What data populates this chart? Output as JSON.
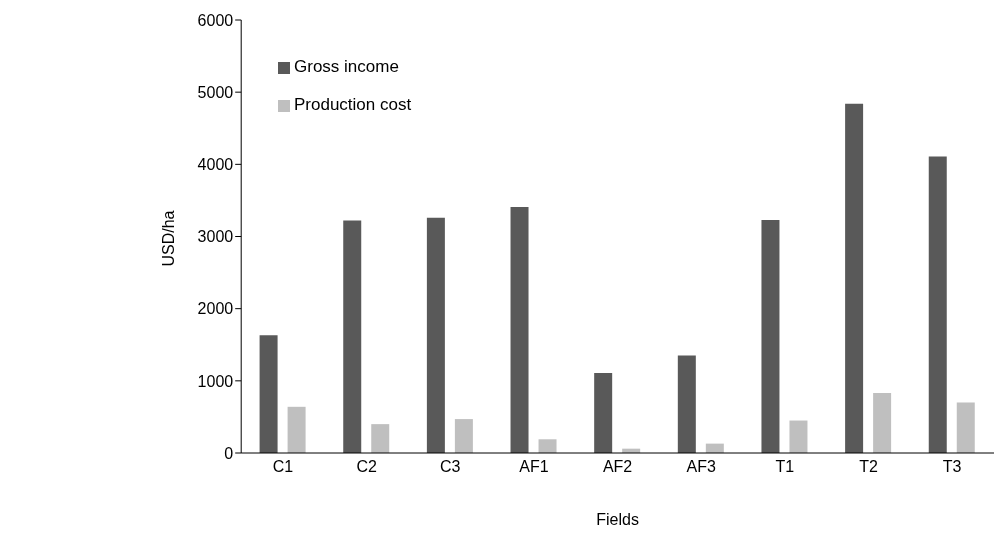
{
  "chart_data": {
    "type": "bar",
    "xlabel": "Fields",
    "ylabel": "USD/ha",
    "categories": [
      "C1",
      "C2",
      "C3",
      "AF1",
      "AF2",
      "AF3",
      "T1",
      "T2",
      "T3"
    ],
    "series": [
      {
        "name": "Gross income",
        "color": "#595959",
        "values": [
          1630,
          3220,
          3260,
          3410,
          1110,
          1350,
          3230,
          4840,
          4110
        ]
      },
      {
        "name": "Production cost",
        "color": "#bfbfbf",
        "values": [
          640,
          400,
          470,
          190,
          60,
          130,
          450,
          830,
          700
        ]
      }
    ],
    "ylim": [
      0,
      6000
    ],
    "yticks": [
      0,
      1000,
      2000,
      3000,
      4000,
      5000,
      6000
    ],
    "grid": false,
    "legend": "top left"
  }
}
